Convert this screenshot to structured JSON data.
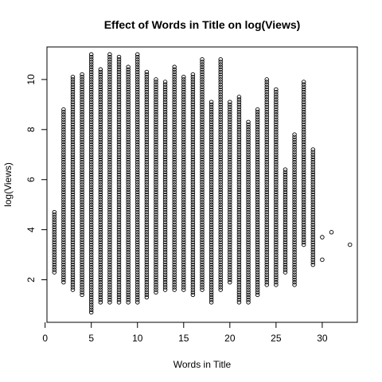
{
  "chart_data": {
    "type": "scatter",
    "title": "Effect of Words in Title on log(Views)",
    "xlabel": "Words in Title",
    "ylabel": "log(Views)",
    "xlim": [
      0.2,
      33.8
    ],
    "ylim": [
      0.3,
      11.3
    ],
    "xticks": [
      0,
      5,
      10,
      15,
      20,
      25,
      30
    ],
    "yticks": [
      2,
      4,
      6,
      8,
      10
    ],
    "grid": false,
    "legend": "none",
    "columns": [
      {
        "x": 1,
        "ymin": 2.3,
        "ymax": 4.75
      },
      {
        "x": 2,
        "ymin": 1.9,
        "ymax": 8.8
      },
      {
        "x": 3,
        "ymin": 1.6,
        "ymax": 10.1
      },
      {
        "x": 4,
        "ymin": 1.4,
        "ymax": 10.2
      },
      {
        "x": 5,
        "ymin": 0.7,
        "ymax": 11.0
      },
      {
        "x": 6,
        "ymin": 1.1,
        "ymax": 10.4
      },
      {
        "x": 7,
        "ymin": 1.1,
        "ymax": 11.0
      },
      {
        "x": 8,
        "ymin": 1.1,
        "ymax": 10.9
      },
      {
        "x": 9,
        "ymin": 1.1,
        "ymax": 10.5
      },
      {
        "x": 10,
        "ymin": 1.1,
        "ymax": 11.0
      },
      {
        "x": 11,
        "ymin": 1.3,
        "ymax": 10.3
      },
      {
        "x": 12,
        "ymin": 1.5,
        "ymax": 10.0
      },
      {
        "x": 13,
        "ymin": 1.6,
        "ymax": 9.9
      },
      {
        "x": 14,
        "ymin": 1.6,
        "ymax": 10.5
      },
      {
        "x": 15,
        "ymin": 1.6,
        "ymax": 10.1
      },
      {
        "x": 16,
        "ymin": 1.4,
        "ymax": 10.2
      },
      {
        "x": 17,
        "ymin": 1.6,
        "ymax": 10.8
      },
      {
        "x": 18,
        "ymin": 1.1,
        "ymax": 9.1
      },
      {
        "x": 19,
        "ymin": 1.6,
        "ymax": 10.8
      },
      {
        "x": 20,
        "ymin": 1.9,
        "ymax": 9.1
      },
      {
        "x": 21,
        "ymin": 1.1,
        "ymax": 9.3
      },
      {
        "x": 22,
        "ymin": 1.1,
        "ymax": 8.3
      },
      {
        "x": 23,
        "ymin": 1.4,
        "ymax": 8.8
      },
      {
        "x": 24,
        "ymin": 1.8,
        "ymax": 10.0
      },
      {
        "x": 25,
        "ymin": 1.8,
        "ymax": 9.6
      },
      {
        "x": 26,
        "ymin": 2.3,
        "ymax": 6.4
      },
      {
        "x": 27,
        "ymin": 1.8,
        "ymax": 7.8
      },
      {
        "x": 28,
        "ymin": 3.4,
        "ymax": 9.9
      },
      {
        "x": 29,
        "ymin": 2.6,
        "ymax": 7.2
      }
    ],
    "outliers": [
      {
        "x": 30,
        "y": 2.8
      },
      {
        "x": 30,
        "y": 3.7
      },
      {
        "x": 31,
        "y": 3.9
      },
      {
        "x": 33,
        "y": 3.4
      }
    ]
  }
}
